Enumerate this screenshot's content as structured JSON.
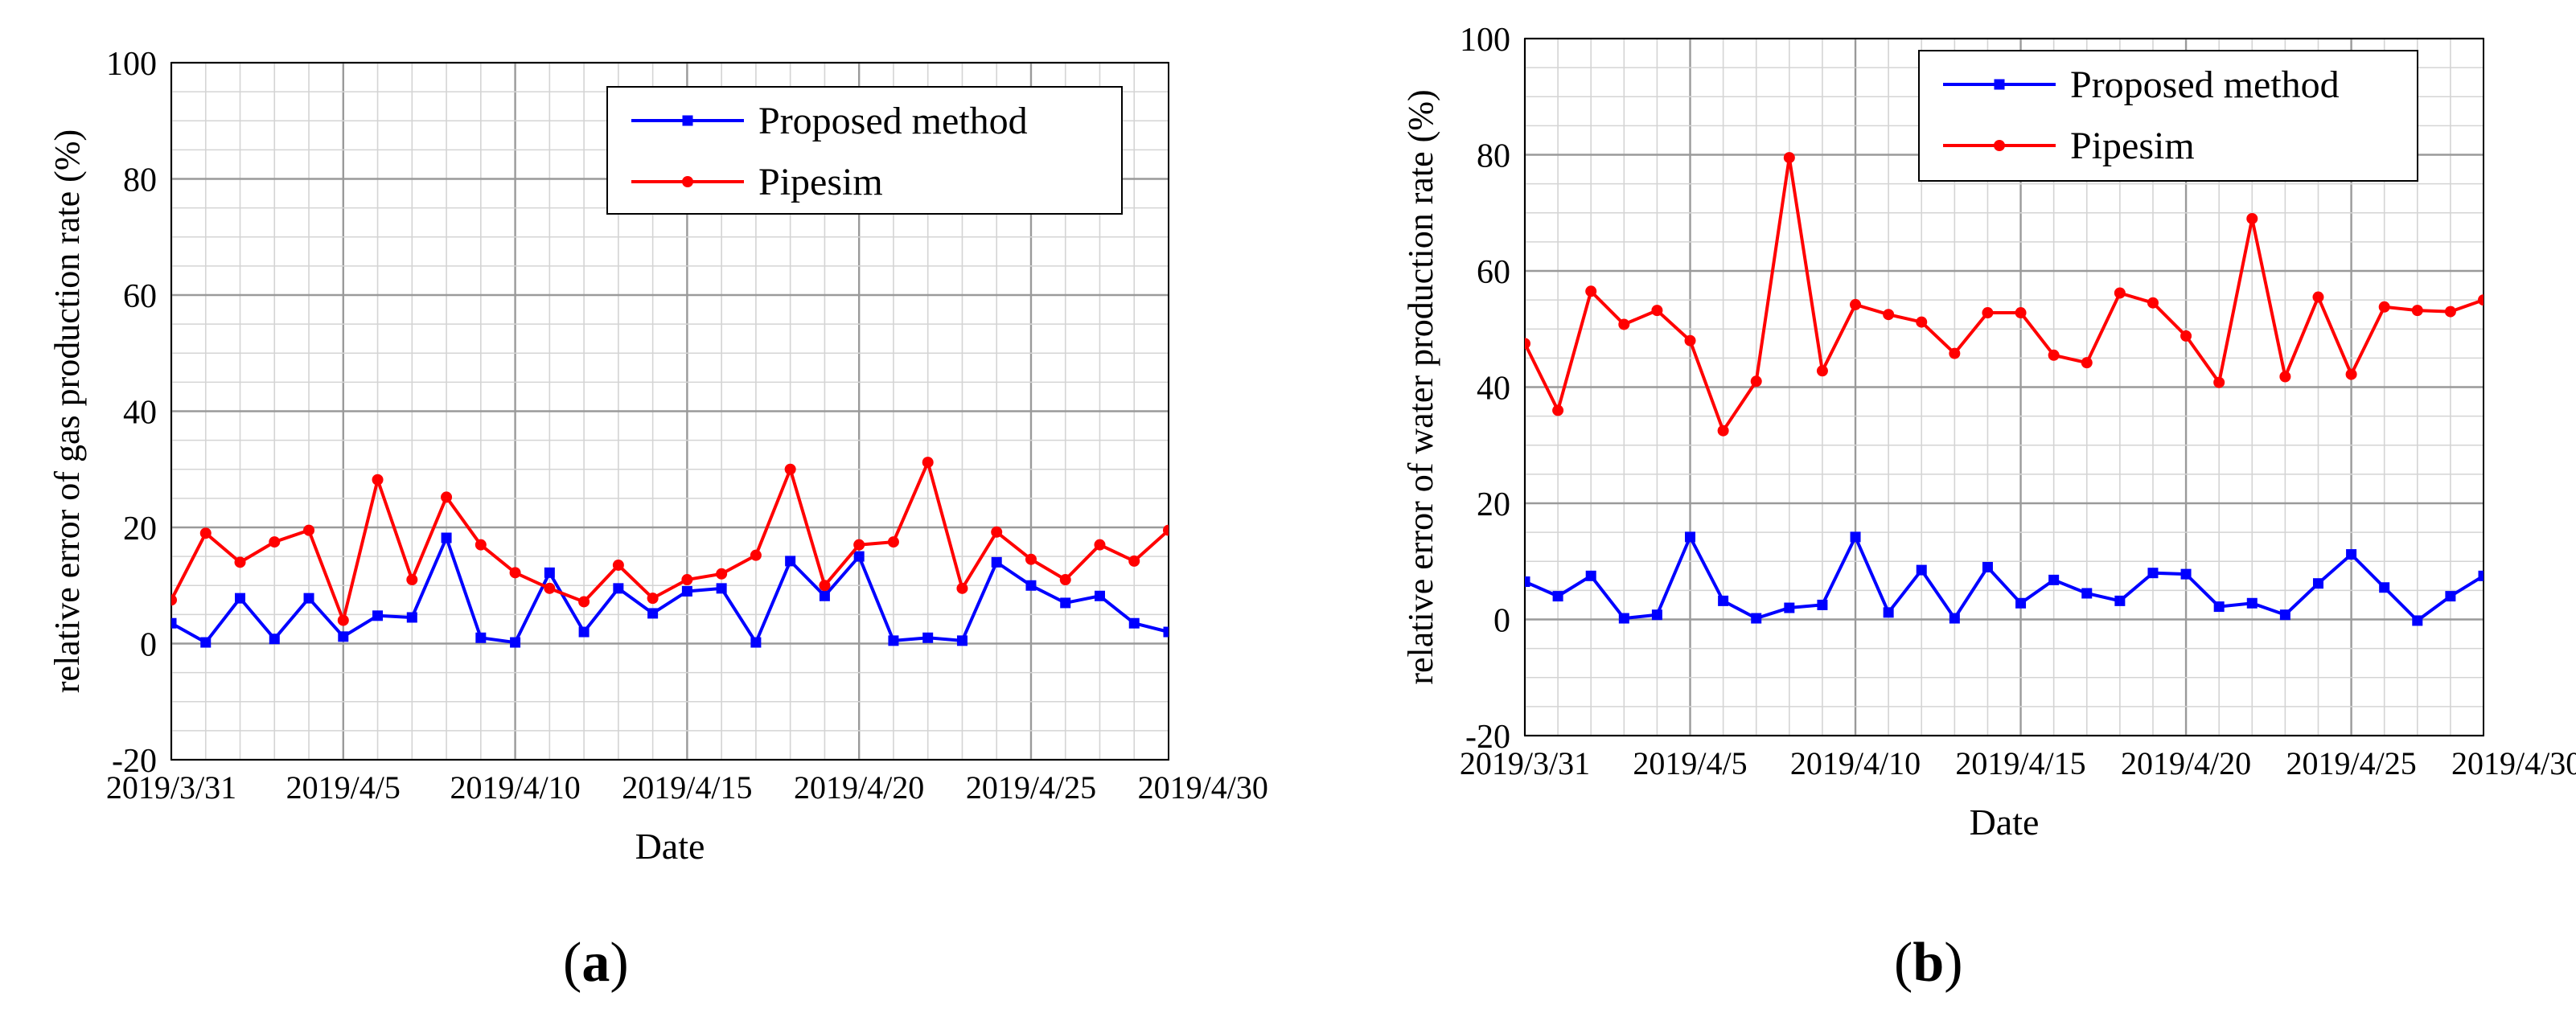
{
  "chart_data": [
    {
      "type": "line",
      "panel": "a",
      "caption_letter": "a",
      "xlabel": "Date",
      "ylabel": "relative error of gas production rate (%)",
      "ylim": [
        -20,
        100
      ],
      "yticks": [
        -20,
        0,
        20,
        40,
        60,
        80,
        100
      ],
      "xlim": [
        0,
        29
      ],
      "xtick_positions": [
        0,
        5,
        10,
        15,
        20,
        25,
        30
      ],
      "xtick_labels": [
        "2019/3/31",
        "2019/4/5",
        "2019/4/10",
        "2019/4/15",
        "2019/4/20",
        "2019/4/25",
        "2019/4/30"
      ],
      "legend_position": "top-right",
      "grid": true,
      "series": [
        {
          "name": "Proposed method",
          "color": "#0000ff",
          "marker": "square",
          "values": [
            3.5,
            0.2,
            7.8,
            0.8,
            7.8,
            1.2,
            4.8,
            4.5,
            18.2,
            1.0,
            0.2,
            12.2,
            2.0,
            9.5,
            5.2,
            9.0,
            9.5,
            0.2,
            14.2,
            8.2,
            15.0,
            0.5,
            1.0,
            0.5,
            14.0,
            10.0,
            7.0,
            8.2,
            3.5,
            2.0
          ]
        },
        {
          "name": "Pipesim",
          "color": "#ff0000",
          "marker": "circle",
          "values": [
            7.5,
            19.0,
            14.0,
            17.5,
            19.5,
            4.0,
            28.2,
            11.0,
            25.2,
            17.0,
            12.2,
            9.5,
            7.2,
            13.5,
            7.8,
            11.0,
            12.0,
            15.2,
            30.0,
            10.0,
            17.0,
            17.5,
            31.2,
            9.5,
            19.2,
            14.5,
            11.0,
            17.0,
            14.2,
            19.5
          ]
        }
      ]
    },
    {
      "type": "line",
      "panel": "b",
      "caption_letter": "b",
      "xlabel": "Date",
      "ylabel": "relative error of water production rate (%)",
      "ylim": [
        -20,
        100
      ],
      "yticks": [
        -20,
        0,
        20,
        40,
        60,
        80,
        100
      ],
      "xlim": [
        0,
        29
      ],
      "xtick_positions": [
        0,
        5,
        10,
        15,
        20,
        25,
        30
      ],
      "xtick_labels": [
        "2019/3/31",
        "2019/4/5",
        "2019/4/10",
        "2019/4/15",
        "2019/4/20",
        "2019/4/25",
        "2019/4/30"
      ],
      "legend_position": "top-right",
      "grid": true,
      "series": [
        {
          "name": "Proposed method",
          "color": "#0000ff",
          "marker": "square",
          "values": [
            6.5,
            4.0,
            7.5,
            0.2,
            0.8,
            14.2,
            3.2,
            0.2,
            2.0,
            2.5,
            14.2,
            1.2,
            8.5,
            0.2,
            9.0,
            2.8,
            6.8,
            4.5,
            3.2,
            8.0,
            7.8,
            2.2,
            2.8,
            0.8,
            6.2,
            11.2,
            5.5,
            -0.2,
            4.0,
            7.5
          ]
        },
        {
          "name": "Pipesim",
          "color": "#ff0000",
          "marker": "circle",
          "values": [
            47.5,
            36.0,
            56.5,
            50.8,
            53.2,
            48.0,
            32.5,
            41.0,
            79.5,
            42.8,
            54.2,
            52.5,
            51.2,
            45.8,
            52.8,
            52.8,
            45.5,
            44.2,
            56.2,
            54.5,
            48.8,
            40.8,
            69.0,
            41.8,
            55.5,
            42.2,
            53.8,
            53.2,
            53.0,
            55.0
          ]
        }
      ]
    }
  ]
}
